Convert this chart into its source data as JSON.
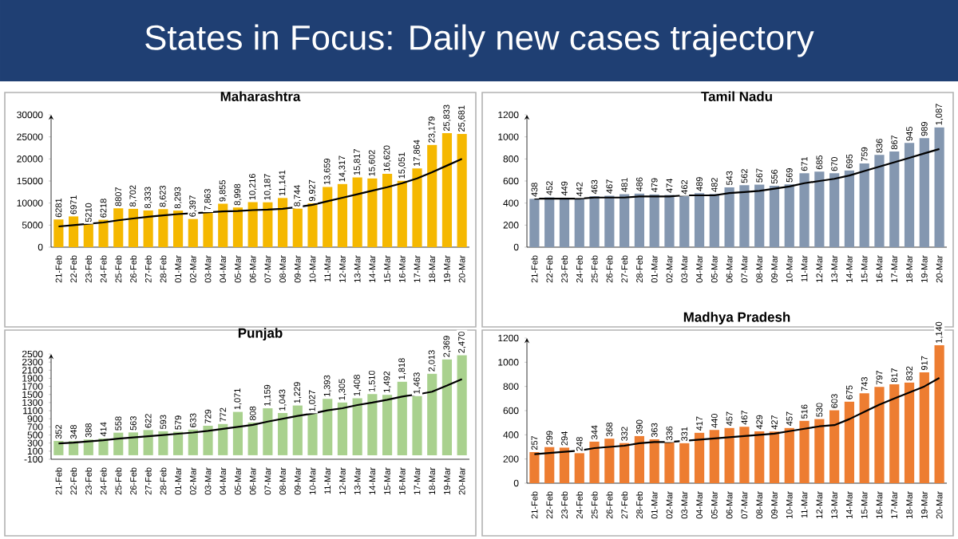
{
  "chart_data": [
    {
      "type": "other",
      "title": "States in Focus: Daily new cases trajectory",
      "color": "#1f3f73"
    },
    {
      "type": "bar",
      "title": "Maharashtra",
      "categories": [
        "21-Feb",
        "22-Feb",
        "23-Feb",
        "24-Feb",
        "25-Feb",
        "26-Feb",
        "27-Feb",
        "28-Feb",
        "01-Mar",
        "02-Mar",
        "03-Mar",
        "04-Mar",
        "05-Mar",
        "06-Mar",
        "07-Mar",
        "08-Mar",
        "09-Mar",
        "10-Mar",
        "11-Mar",
        "12-Mar",
        "13-Mar",
        "14-Mar",
        "15-Mar",
        "16-Mar",
        "17-Mar",
        "18-Mar",
        "19-Mar",
        "20-Mar"
      ],
      "series": [
        {
          "type": "bar",
          "color": "#f5b800",
          "values": [
            6281,
            6971,
            5210,
            6218,
            8807,
            8702,
            8333,
            8623,
            8293,
            6397,
            7863,
            9855,
            8998,
            10216,
            10187,
            11141,
            8744,
            9927,
            13659,
            14317,
            15817,
            15602,
            16620,
            15051,
            17864,
            23179,
            25833,
            25681
          ],
          "value_labels": [
            "6281",
            "6971",
            "5210",
            "6218",
            "8807",
            "8,702",
            "8,333",
            "8,623",
            "8,293",
            "6,397",
            "7,863",
            "9,855",
            "8,998",
            "10,216",
            "10,187",
            "11,141",
            "8,744",
            "9,927",
            "13,659",
            "14,317",
            "15,817",
            "15,602",
            "16,620",
            "15,051",
            "17,864",
            "23,179",
            "25,833",
            "25,681"
          ]
        },
        {
          "type": "line",
          "color": "#000000",
          "values": [
            4700,
            5000,
            5300,
            5600,
            6100,
            6500,
            6900,
            7200,
            7500,
            7700,
            7900,
            8100,
            8200,
            8400,
            8500,
            8700,
            9100,
            9600,
            10400,
            11200,
            12000,
            12800,
            13600,
            14500,
            15600,
            17000,
            18500,
            20000
          ]
        }
      ],
      "ylim": [
        0,
        30000
      ],
      "yticks": [
        0,
        5000,
        10000,
        15000,
        20000,
        25000,
        30000
      ]
    },
    {
      "type": "bar",
      "title": "Tamil Nadu",
      "categories": [
        "21-Feb",
        "22-Feb",
        "23-Feb",
        "24-Feb",
        "25-Feb",
        "26-Feb",
        "27-Feb",
        "28-Feb",
        "01-Mar",
        "02-Mar",
        "03-Mar",
        "04-Mar",
        "05-Mar",
        "06-Mar",
        "07-Mar",
        "08-Mar",
        "09-Mar",
        "10-Mar",
        "11-Mar",
        "12-Mar",
        "13-Mar",
        "14-Mar",
        "15-Mar",
        "16-Mar",
        "17-Mar",
        "18-Mar",
        "19-Mar",
        "20-Mar"
      ],
      "series": [
        {
          "type": "bar",
          "color": "#8497b0",
          "values": [
            438,
            452,
            449,
            442,
            463,
            467,
            481,
            486,
            479,
            474,
            462,
            489,
            482,
            543,
            562,
            567,
            556,
            569,
            671,
            685,
            670,
            695,
            759,
            836,
            867,
            945,
            989,
            1087
          ],
          "value_labels": [
            "438",
            "452",
            "449",
            "442",
            "463",
            "467",
            "481",
            "486",
            "479",
            "474",
            "462",
            "489",
            "482",
            "543",
            "562",
            "567",
            "556",
            "569",
            "671",
            "685",
            "670",
            "695",
            "759",
            "836",
            "867",
            "945",
            "989",
            "1,087"
          ]
        },
        {
          "type": "line",
          "color": "#000000",
          "values": [
            440,
            440,
            440,
            440,
            450,
            450,
            450,
            460,
            460,
            460,
            470,
            470,
            470,
            490,
            500,
            510,
            530,
            550,
            580,
            600,
            620,
            650,
            690,
            730,
            770,
            810,
            850,
            890
          ]
        }
      ],
      "ylim": [
        0,
        1200
      ],
      "yticks": [
        0,
        200,
        400,
        600,
        800,
        1000,
        1200
      ]
    },
    {
      "type": "bar",
      "title": "Punjab",
      "categories": [
        "21-Feb",
        "22-Feb",
        "23-Feb",
        "24-Feb",
        "25-Feb",
        "26-Feb",
        "27-Feb",
        "28-Feb",
        "01-Mar",
        "02-Mar",
        "03-Mar",
        "04-Mar",
        "05-Mar",
        "06-Mar",
        "07-Mar",
        "08-Mar",
        "09-Mar",
        "10-Mar",
        "11-Mar",
        "12-Mar",
        "13-Mar",
        "14-Mar",
        "15-Mar",
        "16-Mar",
        "17-Mar",
        "18-Mar",
        "19-Mar",
        "20-Mar"
      ],
      "series": [
        {
          "type": "bar",
          "color": "#a9d18e",
          "values": [
            352,
            348,
            388,
            414,
            558,
            563,
            622,
            593,
            579,
            633,
            729,
            772,
            1071,
            808,
            1159,
            1043,
            1229,
            1027,
            1393,
            1305,
            1408,
            1510,
            1492,
            1818,
            1463,
            2013,
            2369,
            2470
          ],
          "value_labels": [
            "352",
            "348",
            "388",
            "414",
            "558",
            "563",
            "622",
            "593",
            "579",
            "633",
            "729",
            "772",
            "1,071",
            "808",
            "1,159",
            "1,043",
            "1,229",
            "1,027",
            "1,393",
            "1,305",
            "1,408",
            "1,510",
            "1,492",
            "1,818",
            "1,463",
            "2,013",
            "2,369",
            "2,470"
          ]
        },
        {
          "type": "line",
          "color": "#000000",
          "values": [
            290,
            310,
            340,
            370,
            410,
            440,
            470,
            500,
            530,
            560,
            600,
            650,
            700,
            750,
            830,
            900,
            970,
            1030,
            1110,
            1160,
            1240,
            1300,
            1370,
            1450,
            1500,
            1570,
            1720,
            1880
          ]
        }
      ],
      "ylim": [
        -100,
        2500
      ],
      "yticks": [
        -100,
        100,
        300,
        500,
        700,
        900,
        1100,
        1300,
        1500,
        1700,
        1900,
        2100,
        2300,
        2500
      ]
    },
    {
      "type": "bar",
      "title": "Madhya Pradesh",
      "categories": [
        "21-Feb",
        "22-Feb",
        "23-Feb",
        "24-Feb",
        "25-Feb",
        "26-Feb",
        "27-Feb",
        "28-Feb",
        "01-Mar",
        "02-Mar",
        "03-Mar",
        "04-Mar",
        "05-Mar",
        "06-Mar",
        "07-Mar",
        "08-Mar",
        "09-Mar",
        "10-Mar",
        "11-Mar",
        "12-Mar",
        "13-Mar",
        "14-Mar",
        "15-Mar",
        "16-Mar",
        "17-Mar",
        "18-Mar",
        "19-Mar",
        "20-Mar"
      ],
      "series": [
        {
          "type": "bar",
          "color": "#ed7d31",
          "values": [
            257,
            299,
            294,
            248,
            344,
            368,
            332,
            390,
            363,
            336,
            331,
            417,
            440,
            457,
            467,
            429,
            427,
            457,
            516,
            530,
            603,
            675,
            743,
            797,
            817,
            832,
            917,
            1140
          ],
          "value_labels": [
            "257",
            "299",
            "294",
            "248",
            "344",
            "368",
            "332",
            "390",
            "363",
            "336",
            "331",
            "417",
            "440",
            "457",
            "467",
            "429",
            "427",
            "457",
            "516",
            "530",
            "603",
            "675",
            "743",
            "797",
            "817",
            "832",
            "917",
            "1,140"
          ]
        },
        {
          "type": "line",
          "color": "#000000",
          "values": [
            240,
            250,
            260,
            270,
            290,
            300,
            310,
            330,
            340,
            340,
            350,
            360,
            370,
            380,
            390,
            400,
            410,
            430,
            450,
            470,
            480,
            530,
            590,
            650,
            700,
            750,
            800,
            870
          ]
        }
      ],
      "ylim": [
        0,
        1200
      ],
      "yticks": [
        0,
        200,
        400,
        600,
        800,
        1000,
        1200
      ]
    }
  ]
}
